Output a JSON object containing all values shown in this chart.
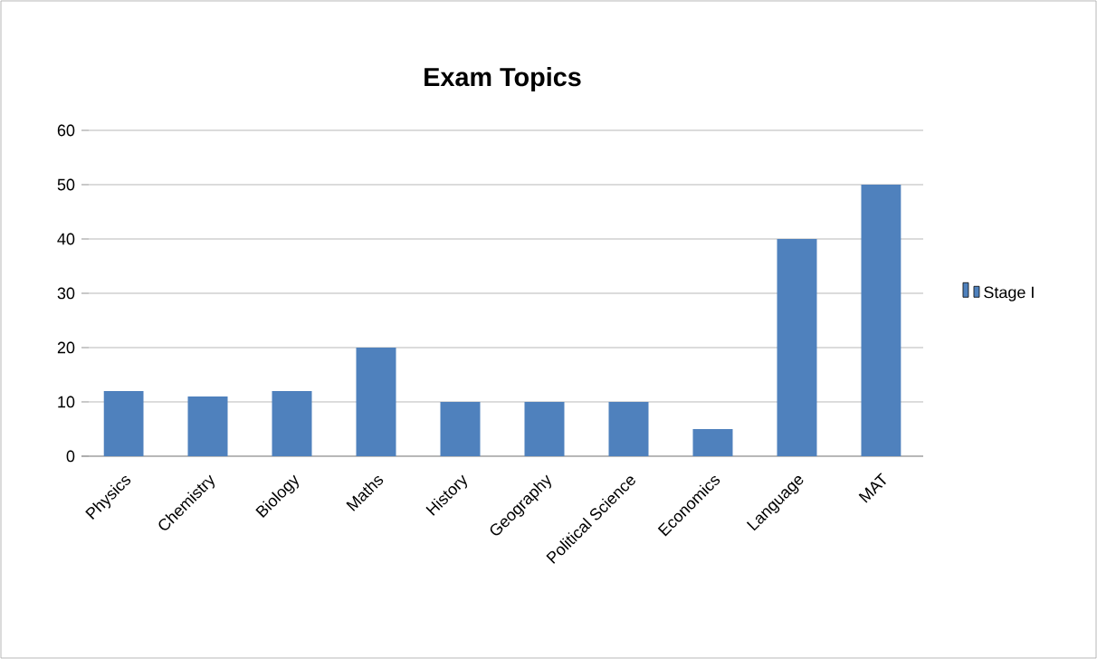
{
  "chart_data": {
    "type": "bar",
    "title": "Exam Topics",
    "categories": [
      "Physics",
      "Chemistry",
      "Biology",
      "Maths",
      "History",
      "Geography",
      "Political Science",
      "Economics",
      "Language",
      "MAT"
    ],
    "series": [
      {
        "name": "Stage I",
        "color": "#4f81bd",
        "values": [
          12,
          11,
          12,
          20,
          10,
          10,
          10,
          5,
          40,
          50
        ]
      }
    ],
    "ylim": [
      0,
      60
    ],
    "yticks": [
      0,
      10,
      20,
      30,
      40,
      50,
      60
    ],
    "grid": "y",
    "legend": "right"
  }
}
